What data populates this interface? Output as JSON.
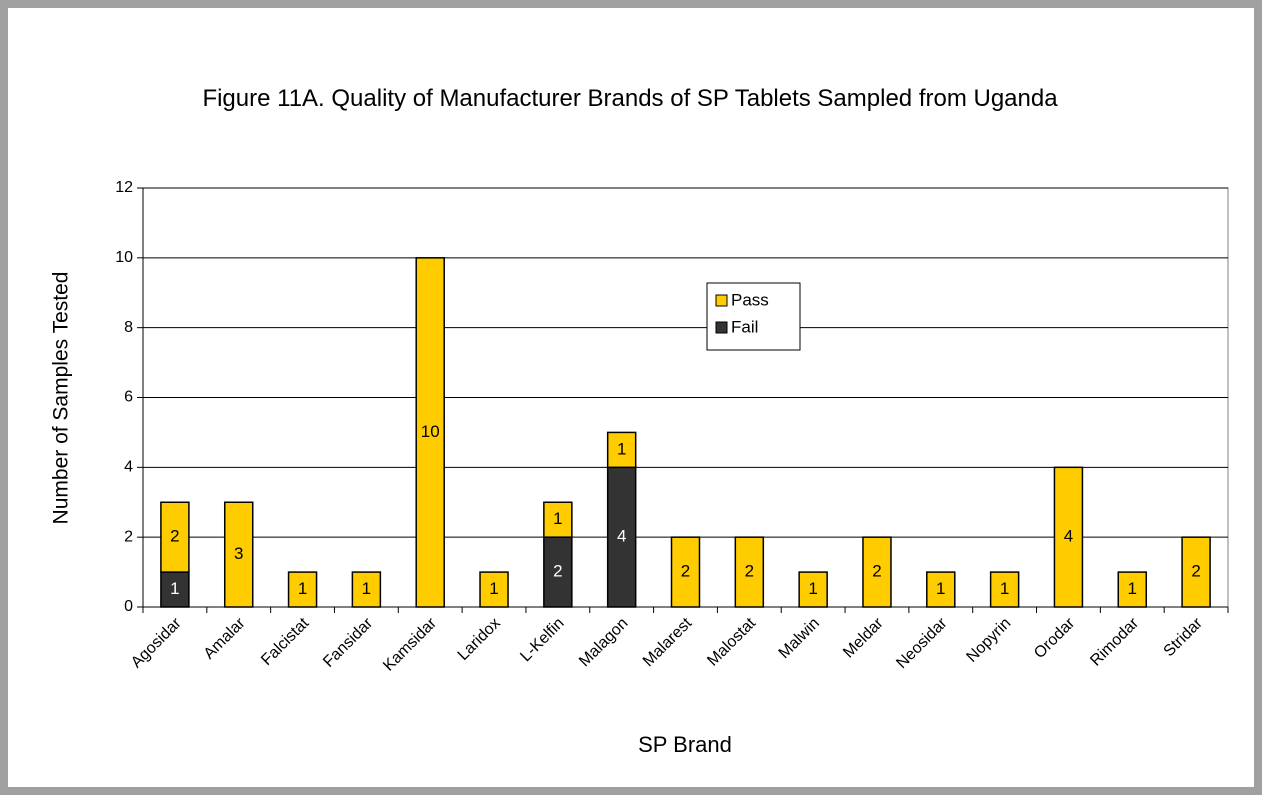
{
  "chart_data": {
    "type": "stacked_bar",
    "title": "Figure 11A. Quality of Manufacturer Brands of SP Tablets Sampled from Uganda",
    "x_label": "SP Brand",
    "y_label": "Number of Samples Tested",
    "categories": [
      "Agosidar",
      "Amalar",
      "Falcistat",
      "Fansidar",
      "Kamsidar",
      "Laridox",
      "L-Kelfin",
      "Malagon",
      "Malarest",
      "Malostat",
      "Malwin",
      "Meldar",
      "Neosidar",
      "Nopyrin",
      "Orodar",
      "Rimodar",
      "Stridar"
    ],
    "series": [
      {
        "name": "Fail",
        "color": "#333333",
        "label_color": "#ffffff",
        "values": [
          1,
          0,
          0,
          0,
          0,
          0,
          2,
          4,
          0,
          0,
          0,
          0,
          0,
          0,
          0,
          0,
          0
        ]
      },
      {
        "name": "Pass",
        "color": "#ffcc00",
        "label_color": "#000000",
        "values": [
          2,
          3,
          1,
          1,
          10,
          1,
          1,
          1,
          2,
          2,
          1,
          2,
          1,
          1,
          4,
          1,
          2
        ]
      }
    ],
    "ylim": [
      0,
      12
    ],
    "yticks": [
      0,
      2,
      4,
      6,
      8,
      10,
      12
    ],
    "grid": true
  }
}
